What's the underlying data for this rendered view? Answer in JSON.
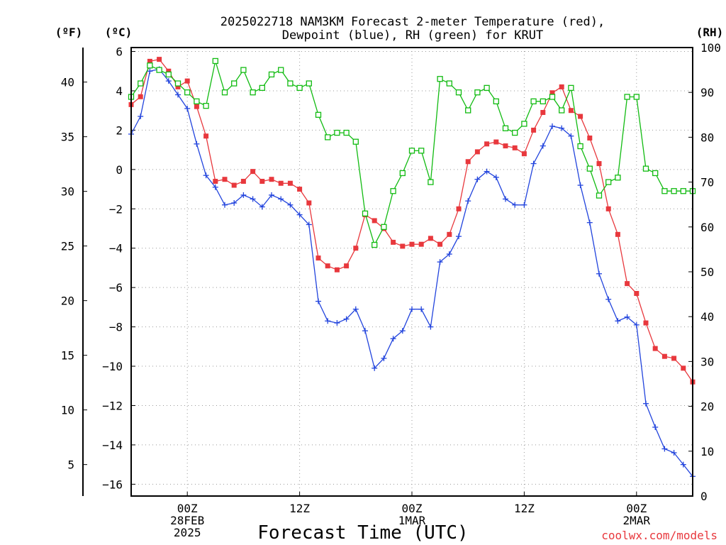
{
  "title": {
    "line1": "2025022718 NAM3KM Forecast 2-meter Temperature (red),",
    "line2": "Dewpoint (blue), RH (green) for KRUT"
  },
  "units": {
    "fahrenheit": "(ºF)",
    "celsius": "(ºC)",
    "rh": "(RH)"
  },
  "xlabel": "Forecast Time (UTC)",
  "credit": "coolwx.com/models",
  "colors": {
    "temperature": "#e8383d",
    "dewpoint": "#2244dd",
    "rh": "#11bb11",
    "grid": "#999999",
    "credit": "#e8383d"
  },
  "chart_data": {
    "type": "line",
    "x": [
      -6,
      -5,
      -4,
      -3,
      -2,
      -1,
      0,
      1,
      2,
      3,
      4,
      5,
      6,
      7,
      8,
      9,
      10,
      11,
      12,
      13,
      14,
      15,
      16,
      17,
      18,
      19,
      20,
      21,
      22,
      23,
      24,
      25,
      26,
      27,
      28,
      29,
      30,
      31,
      32,
      33,
      34,
      35,
      36,
      37,
      38,
      39,
      40,
      41,
      42,
      43,
      44,
      45,
      46,
      47,
      48,
      49,
      50,
      51,
      52,
      53,
      54
    ],
    "x_unit": "hours since 00Z 28FEB 2025",
    "xlim": [
      -6,
      54
    ],
    "x_tick_labels": [
      {
        "x": 0,
        "lines": [
          "00Z",
          "28FEB",
          "2025"
        ]
      },
      {
        "x": 12,
        "lines": [
          "12Z"
        ]
      },
      {
        "x": 24,
        "lines": [
          "00Z",
          "1MAR"
        ]
      },
      {
        "x": 36,
        "lines": [
          "12Z"
        ]
      },
      {
        "x": 48,
        "lines": [
          "00Z",
          "2MAR"
        ]
      }
    ],
    "y_left_celsius": {
      "range": [
        -16.6,
        6.2
      ],
      "ticks": [
        6,
        4,
        2,
        0,
        -2,
        -4,
        -6,
        -8,
        -10,
        -12,
        -14,
        -16
      ]
    },
    "y_left_fahrenheit": {
      "ticks": [
        40,
        35,
        30,
        25,
        20,
        15,
        10,
        5
      ]
    },
    "y_right_rh": {
      "range": [
        0,
        100
      ],
      "ticks": [
        100,
        90,
        80,
        70,
        60,
        50,
        40,
        30,
        20,
        10,
        0
      ]
    },
    "grid": true,
    "series": [
      {
        "name": "Temperature",
        "axis": "celsius",
        "marker": "filled-square",
        "values": [
          3.3,
          3.7,
          5.5,
          5.6,
          5.0,
          4.2,
          4.5,
          3.2,
          1.7,
          -0.6,
          -0.5,
          -0.8,
          -0.6,
          -0.1,
          -0.6,
          -0.5,
          -0.7,
          -0.7,
          -1.0,
          -1.7,
          -4.5,
          -4.9,
          -5.1,
          -4.9,
          -4.0,
          -2.3,
          -2.6,
          -3.0,
          -3.7,
          -3.9,
          -3.8,
          -3.8,
          -3.5,
          -3.8,
          -3.3,
          -2.0,
          0.4,
          0.9,
          1.3,
          1.4,
          1.2,
          1.1,
          0.8,
          2.0,
          2.9,
          3.9,
          4.2,
          3.0,
          2.7,
          1.6,
          0.3,
          -2.0,
          -3.3,
          -5.8,
          -6.3,
          -7.8,
          -9.1,
          -9.5,
          -9.6,
          -10.1,
          -10.8
        ]
      },
      {
        "name": "Dewpoint",
        "axis": "celsius",
        "marker": "plus",
        "values": [
          1.8,
          2.7,
          5.0,
          5.1,
          4.5,
          3.8,
          3.1,
          1.3,
          -0.3,
          -0.9,
          -1.8,
          -1.7,
          -1.3,
          -1.5,
          -1.9,
          -1.3,
          -1.5,
          -1.8,
          -2.3,
          -2.8,
          -6.7,
          -7.7,
          -7.8,
          -7.6,
          -7.1,
          -8.2,
          -10.1,
          -9.6,
          -8.6,
          -8.2,
          -7.1,
          -7.1,
          -8.0,
          -4.7,
          -4.3,
          -3.4,
          -1.6,
          -0.5,
          -0.1,
          -0.4,
          -1.5,
          -1.8,
          -1.8,
          0.3,
          1.2,
          2.2,
          2.1,
          1.7,
          -0.8,
          -2.7,
          -5.3,
          -6.6,
          -7.7,
          -7.5,
          -7.9,
          -11.9,
          -13.1,
          -14.2,
          -14.4,
          -15.0,
          -15.6
        ]
      },
      {
        "name": "RH",
        "axis": "rh",
        "marker": "open-square",
        "values": [
          89,
          92,
          96,
          95,
          94,
          92,
          90,
          88,
          87,
          97,
          90,
          92,
          95,
          90,
          91,
          94,
          95,
          92,
          91,
          92,
          85,
          80,
          81,
          81,
          79,
          63,
          56,
          60,
          68,
          72,
          77,
          77,
          70,
          93,
          92,
          90,
          86,
          90,
          91,
          88,
          82,
          81,
          83,
          88,
          88,
          89,
          86,
          91,
          78,
          73,
          67,
          70,
          71,
          89,
          89,
          73,
          72,
          68,
          68,
          68,
          68
        ]
      }
    ]
  }
}
